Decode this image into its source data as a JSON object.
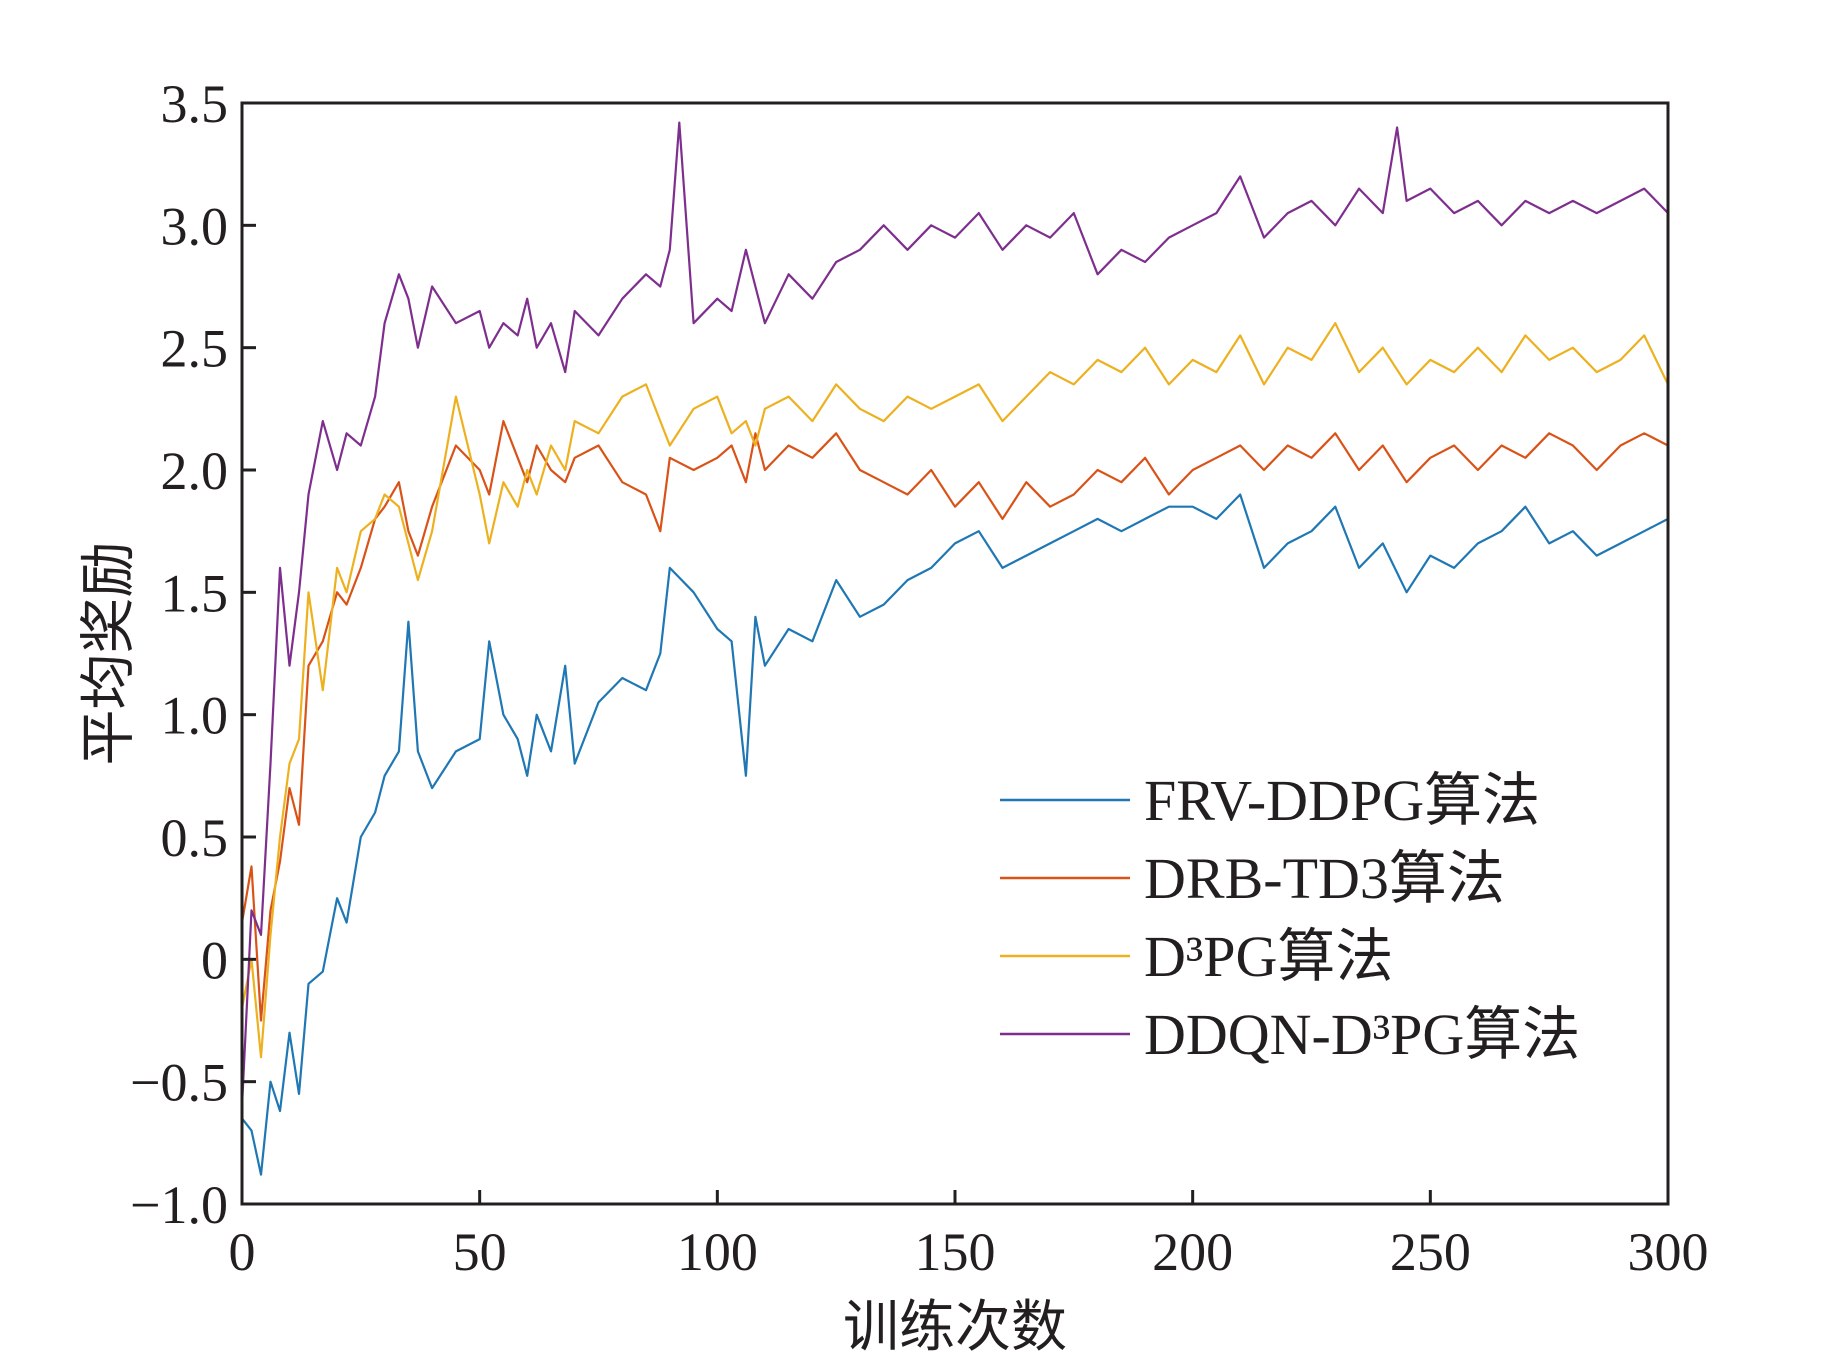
{
  "chart_data": {
    "type": "line",
    "title": "",
    "xlabel": "训练次数",
    "ylabel": "平均奖励",
    "xlim": [
      0,
      300
    ],
    "ylim": [
      -1.0,
      3.5
    ],
    "x_ticks": [
      0,
      50,
      100,
      150,
      200,
      250,
      300
    ],
    "x_tick_labels": [
      "0",
      "50",
      "100",
      "150",
      "200",
      "250",
      "300"
    ],
    "y_ticks": [
      -1.0,
      -0.5,
      0,
      0.5,
      1.0,
      1.5,
      2.0,
      2.5,
      3.0,
      3.5
    ],
    "y_tick_labels": [
      "−1.0",
      "−0.5",
      "0",
      "0.5",
      "1.0",
      "1.5",
      "2.0",
      "2.5",
      "3.0",
      "3.5"
    ],
    "grid": false,
    "legend_position": "bottom-right",
    "series": [
      {
        "name": "FRV-DDPG算法",
        "color": "#1f77b4",
        "x": [
          0,
          2,
          4,
          6,
          8,
          10,
          12,
          14,
          17,
          20,
          22,
          25,
          28,
          30,
          33,
          35,
          37,
          40,
          45,
          50,
          52,
          55,
          58,
          60,
          62,
          65,
          68,
          70,
          75,
          80,
          85,
          88,
          90,
          95,
          100,
          103,
          106,
          108,
          110,
          115,
          120,
          125,
          130,
          135,
          140,
          145,
          150,
          155,
          160,
          165,
          170,
          175,
          180,
          185,
          190,
          195,
          200,
          205,
          210,
          215,
          220,
          225,
          230,
          235,
          240,
          245,
          250,
          255,
          260,
          265,
          270,
          275,
          280,
          285,
          290,
          295,
          300
        ],
        "values": [
          -0.65,
          -0.7,
          -0.88,
          -0.5,
          -0.62,
          -0.3,
          -0.55,
          -0.1,
          -0.05,
          0.25,
          0.15,
          0.5,
          0.6,
          0.75,
          0.85,
          1.38,
          0.85,
          0.7,
          0.85,
          0.9,
          1.3,
          1.0,
          0.9,
          0.75,
          1.0,
          0.85,
          1.2,
          0.8,
          1.05,
          1.15,
          1.1,
          1.25,
          1.6,
          1.5,
          1.35,
          1.3,
          0.75,
          1.4,
          1.2,
          1.35,
          1.3,
          1.55,
          1.4,
          1.45,
          1.55,
          1.6,
          1.7,
          1.75,
          1.6,
          1.65,
          1.7,
          1.75,
          1.8,
          1.75,
          1.8,
          1.85,
          1.85,
          1.8,
          1.9,
          1.6,
          1.7,
          1.75,
          1.85,
          1.6,
          1.7,
          1.5,
          1.65,
          1.6,
          1.7,
          1.75,
          1.85,
          1.7,
          1.75,
          1.65,
          1.7,
          1.75,
          1.8
        ]
      },
      {
        "name": "DRB-TD3算法",
        "color": "#d95319",
        "x": [
          0,
          2,
          4,
          6,
          8,
          10,
          12,
          14,
          17,
          20,
          22,
          25,
          28,
          30,
          33,
          35,
          37,
          40,
          45,
          50,
          52,
          55,
          58,
          60,
          62,
          65,
          68,
          70,
          75,
          80,
          85,
          88,
          90,
          95,
          100,
          103,
          106,
          108,
          110,
          115,
          120,
          125,
          130,
          135,
          140,
          145,
          150,
          155,
          160,
          165,
          170,
          175,
          180,
          185,
          190,
          195,
          200,
          205,
          210,
          215,
          220,
          225,
          230,
          235,
          240,
          245,
          250,
          255,
          260,
          265,
          270,
          275,
          280,
          285,
          290,
          295,
          300
        ],
        "values": [
          0.15,
          0.38,
          -0.25,
          0.2,
          0.4,
          0.7,
          0.55,
          1.2,
          1.3,
          1.5,
          1.45,
          1.6,
          1.8,
          1.85,
          1.95,
          1.75,
          1.65,
          1.85,
          2.1,
          2.0,
          1.9,
          2.2,
          2.05,
          1.95,
          2.1,
          2.0,
          1.95,
          2.05,
          2.1,
          1.95,
          1.9,
          1.75,
          2.05,
          2.0,
          2.05,
          2.1,
          1.95,
          2.15,
          2.0,
          2.1,
          2.05,
          2.15,
          2.0,
          1.95,
          1.9,
          2.0,
          1.85,
          1.95,
          1.8,
          1.95,
          1.85,
          1.9,
          2.0,
          1.95,
          2.05,
          1.9,
          2.0,
          2.05,
          2.1,
          2.0,
          2.1,
          2.05,
          2.15,
          2.0,
          2.1,
          1.95,
          2.05,
          2.1,
          2.0,
          2.1,
          2.05,
          2.15,
          2.1,
          2.0,
          2.1,
          2.15,
          2.1
        ]
      },
      {
        "name": "D³PG算法",
        "color": "#edb120",
        "x": [
          0,
          2,
          4,
          6,
          8,
          10,
          12,
          14,
          17,
          20,
          22,
          25,
          28,
          30,
          33,
          35,
          37,
          40,
          45,
          50,
          52,
          55,
          58,
          60,
          62,
          65,
          68,
          70,
          75,
          80,
          85,
          88,
          90,
          95,
          100,
          103,
          106,
          108,
          110,
          115,
          120,
          125,
          130,
          135,
          140,
          145,
          150,
          155,
          160,
          165,
          170,
          175,
          180,
          185,
          190,
          195,
          200,
          205,
          210,
          215,
          220,
          225,
          230,
          235,
          240,
          245,
          250,
          255,
          260,
          265,
          270,
          275,
          280,
          285,
          290,
          295,
          300
        ],
        "values": [
          -0.2,
          0.0,
          -0.4,
          0.1,
          0.5,
          0.8,
          0.9,
          1.5,
          1.1,
          1.6,
          1.5,
          1.75,
          1.8,
          1.9,
          1.85,
          1.7,
          1.55,
          1.75,
          2.3,
          1.9,
          1.7,
          1.95,
          1.85,
          2.0,
          1.9,
          2.1,
          2.0,
          2.2,
          2.15,
          2.3,
          2.35,
          2.2,
          2.1,
          2.25,
          2.3,
          2.15,
          2.2,
          2.1,
          2.25,
          2.3,
          2.2,
          2.35,
          2.25,
          2.2,
          2.3,
          2.25,
          2.3,
          2.35,
          2.2,
          2.3,
          2.4,
          2.35,
          2.45,
          2.4,
          2.5,
          2.35,
          2.45,
          2.4,
          2.55,
          2.35,
          2.5,
          2.45,
          2.6,
          2.4,
          2.5,
          2.35,
          2.45,
          2.4,
          2.5,
          2.4,
          2.55,
          2.45,
          2.5,
          2.4,
          2.45,
          2.55,
          2.35
        ]
      },
      {
        "name": "DDQN-D³PG算法",
        "color": "#7e2f8e",
        "x": [
          0,
          2,
          4,
          6,
          8,
          10,
          12,
          14,
          17,
          20,
          22,
          25,
          28,
          30,
          33,
          35,
          37,
          40,
          45,
          50,
          52,
          55,
          58,
          60,
          62,
          65,
          68,
          70,
          75,
          80,
          85,
          88,
          90,
          92,
          95,
          100,
          103,
          106,
          108,
          110,
          115,
          120,
          125,
          130,
          135,
          140,
          145,
          150,
          155,
          160,
          165,
          170,
          175,
          180,
          185,
          190,
          195,
          200,
          205,
          210,
          215,
          220,
          225,
          230,
          235,
          240,
          243,
          245,
          250,
          255,
          260,
          265,
          270,
          275,
          280,
          285,
          290,
          295,
          300
        ],
        "values": [
          -0.6,
          0.2,
          0.1,
          0.8,
          1.6,
          1.2,
          1.5,
          1.9,
          2.2,
          2.0,
          2.15,
          2.1,
          2.3,
          2.6,
          2.8,
          2.7,
          2.5,
          2.75,
          2.6,
          2.65,
          2.5,
          2.6,
          2.55,
          2.7,
          2.5,
          2.6,
          2.4,
          2.65,
          2.55,
          2.7,
          2.8,
          2.75,
          2.9,
          3.42,
          2.6,
          2.7,
          2.65,
          2.9,
          2.75,
          2.6,
          2.8,
          2.7,
          2.85,
          2.9,
          3.0,
          2.9,
          3.0,
          2.95,
          3.05,
          2.9,
          3.0,
          2.95,
          3.05,
          2.8,
          2.9,
          2.85,
          2.95,
          3.0,
          3.05,
          3.2,
          2.95,
          3.05,
          3.1,
          3.0,
          3.15,
          3.05,
          3.4,
          3.1,
          3.15,
          3.05,
          3.1,
          3.0,
          3.1,
          3.05,
          3.1,
          3.05,
          3.1,
          3.15,
          3.05
        ]
      }
    ]
  }
}
